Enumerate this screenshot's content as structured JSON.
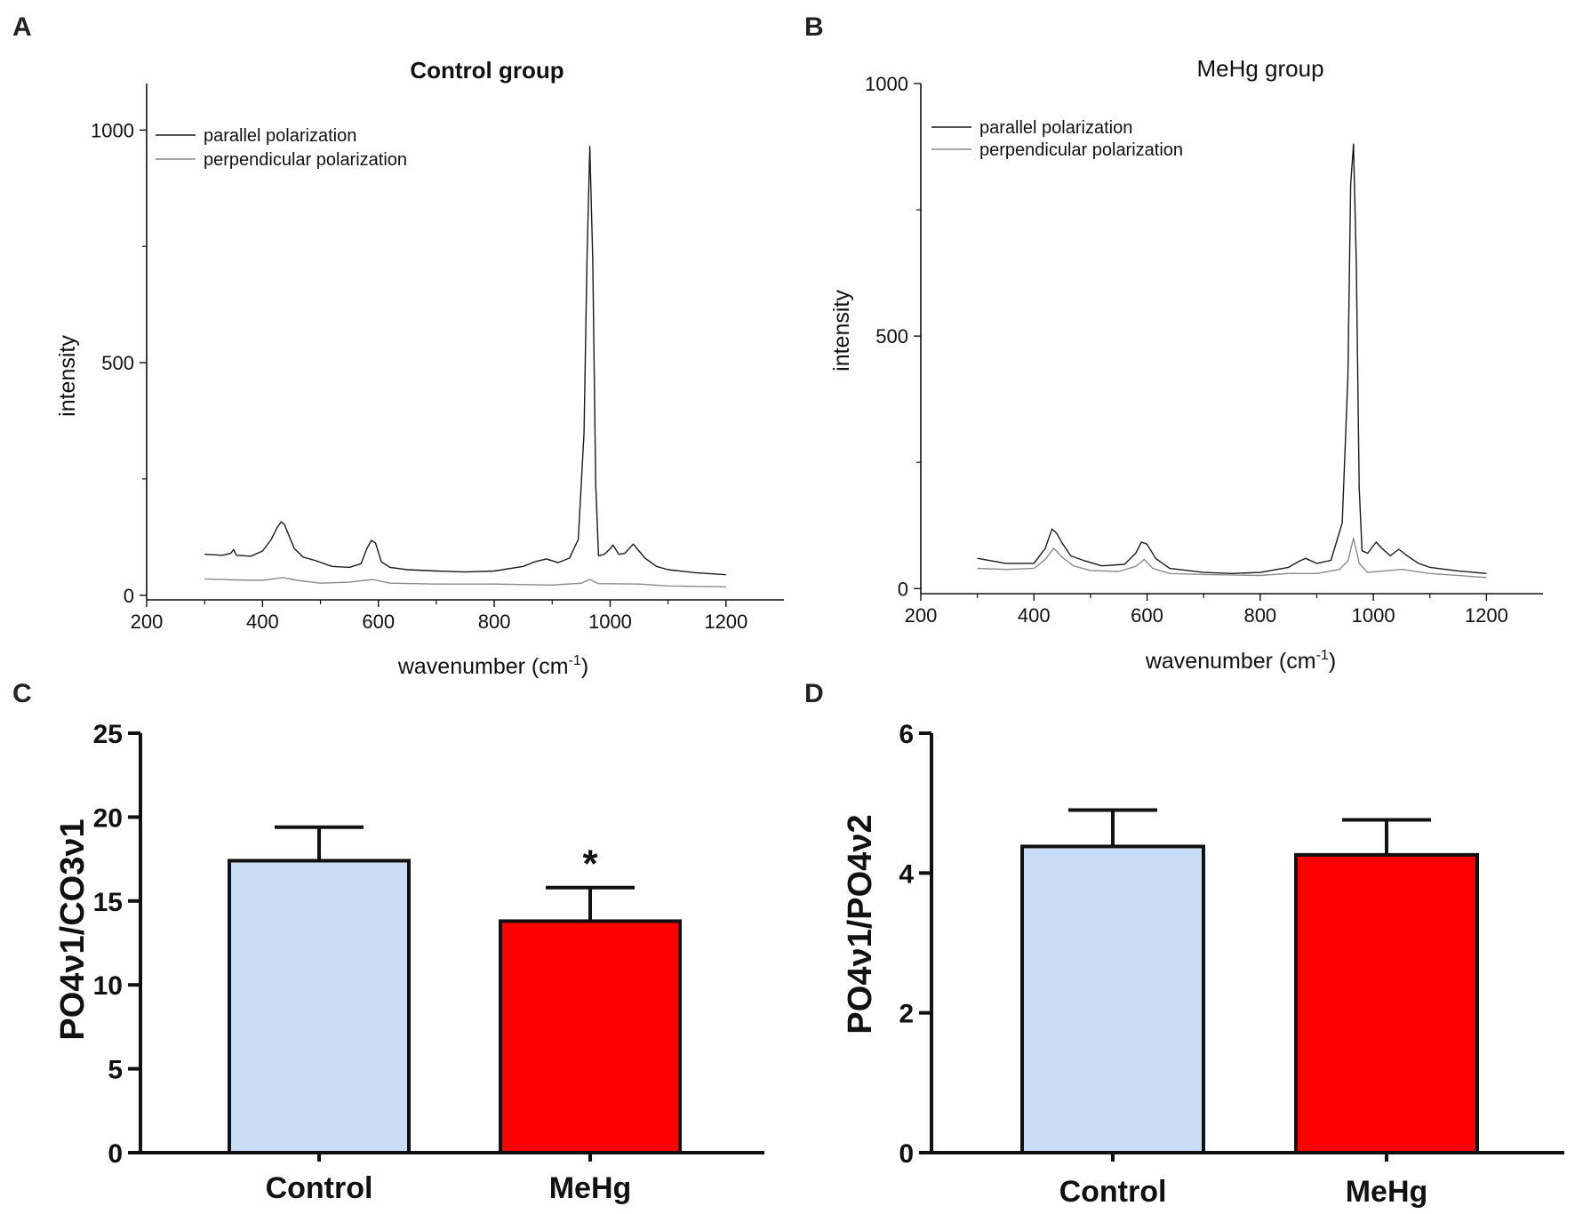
{
  "panels": {
    "A": "A",
    "B": "B",
    "C": "C",
    "D": "D"
  },
  "colors": {
    "parallel": "#1a1a1a",
    "perpendicular": "#8a8a8a",
    "control_bar": "#c9ddf6",
    "mehg_bar": "#ff0000"
  },
  "chart_data": [
    {
      "id": "A",
      "type": "line",
      "title": "Control group",
      "xlabel": "wavenumber (cm",
      "xlabel_sup": "-1",
      "xlabel_close": ")",
      "ylabel": "intensity",
      "xlim": [
        200,
        1300
      ],
      "ylim": [
        -10,
        1100
      ],
      "xticks": [
        "200",
        "400",
        "600",
        "800",
        "1000",
        "1200"
      ],
      "yticks": [
        "0",
        "500",
        "1000"
      ],
      "legend_position": "top-left",
      "series": [
        {
          "name": "parallel polarization",
          "x": [
            300,
            330,
            345,
            350,
            355,
            380,
            400,
            415,
            425,
            432,
            438,
            445,
            455,
            470,
            490,
            520,
            550,
            570,
            580,
            588,
            595,
            605,
            620,
            650,
            700,
            750,
            800,
            850,
            870,
            890,
            910,
            930,
            945,
            955,
            960,
            965,
            970,
            975,
            980,
            990,
            1000,
            1005,
            1015,
            1025,
            1040,
            1048,
            1060,
            1080,
            1100,
            1150,
            1200
          ],
          "y": [
            88,
            86,
            90,
            98,
            86,
            84,
            95,
            120,
            145,
            158,
            152,
            130,
            100,
            82,
            75,
            62,
            60,
            68,
            100,
            118,
            112,
            72,
            60,
            55,
            52,
            50,
            52,
            62,
            72,
            78,
            70,
            80,
            120,
            350,
            720,
            965,
            720,
            240,
            85,
            88,
            100,
            108,
            88,
            90,
            110,
            98,
            80,
            62,
            55,
            48,
            44
          ]
        },
        {
          "name": "perpendicular polarization",
          "x": [
            300,
            350,
            400,
            435,
            460,
            500,
            550,
            590,
            620,
            700,
            800,
            900,
            950,
            965,
            980,
            1050,
            1100,
            1200
          ],
          "y": [
            35,
            33,
            32,
            38,
            32,
            26,
            28,
            34,
            26,
            24,
            24,
            22,
            26,
            34,
            25,
            24,
            20,
            18
          ]
        }
      ]
    },
    {
      "id": "B",
      "type": "line",
      "title": "MeHg group",
      "xlabel": "wavenumber (cm",
      "xlabel_sup": "-1",
      "xlabel_close": ")",
      "ylabel": "intensity",
      "xlim": [
        200,
        1300
      ],
      "ylim": [
        -10,
        1000
      ],
      "xticks": [
        "200",
        "400",
        "600",
        "800",
        "1000",
        "1200"
      ],
      "yticks": [
        "0",
        "500",
        "1000"
      ],
      "legend_position": "top-left",
      "series": [
        {
          "name": "parallel polarization",
          "x": [
            300,
            350,
            400,
            420,
            432,
            440,
            450,
            465,
            490,
            520,
            560,
            580,
            590,
            600,
            615,
            640,
            700,
            750,
            800,
            850,
            870,
            880,
            900,
            925,
            945,
            955,
            960,
            965,
            970,
            975,
            980,
            990,
            1005,
            1015,
            1030,
            1045,
            1060,
            1080,
            1100,
            1150,
            1200
          ],
          "y": [
            60,
            50,
            50,
            80,
            118,
            110,
            90,
            65,
            55,
            45,
            48,
            70,
            92,
            88,
            60,
            40,
            32,
            30,
            32,
            42,
            55,
            60,
            50,
            56,
            130,
            420,
            800,
            880,
            640,
            200,
            75,
            70,
            92,
            80,
            65,
            78,
            65,
            50,
            42,
            35,
            30
          ]
        },
        {
          "name": "perpendicular polarization",
          "x": [
            300,
            350,
            400,
            420,
            435,
            450,
            470,
            500,
            550,
            580,
            595,
            610,
            640,
            700,
            800,
            850,
            900,
            940,
            955,
            965,
            975,
            990,
            1050,
            1100,
            1200
          ],
          "y": [
            40,
            38,
            40,
            58,
            80,
            62,
            45,
            36,
            34,
            44,
            58,
            40,
            30,
            28,
            26,
            30,
            30,
            38,
            55,
            100,
            50,
            32,
            38,
            30,
            22
          ]
        }
      ]
    },
    {
      "id": "C",
      "type": "bar",
      "ylabel": "PO4ν1/CO3ν1",
      "ylim": [
        0,
        25
      ],
      "yticks": [
        "0",
        "5",
        "10",
        "15",
        "20",
        "25"
      ],
      "categories": [
        "Control",
        "MeHg"
      ],
      "values": [
        17.4,
        13.8
      ],
      "errors": [
        2.0,
        2.0
      ],
      "annotations": [
        "",
        "*"
      ]
    },
    {
      "id": "D",
      "type": "bar",
      "ylabel": "PO4ν1/PO4ν2",
      "ylim": [
        0,
        6
      ],
      "yticks": [
        "0",
        "2",
        "4",
        "6"
      ],
      "categories": [
        "Control",
        "MeHg"
      ],
      "values": [
        4.38,
        4.26
      ],
      "errors": [
        0.52,
        0.5
      ],
      "annotations": [
        "",
        ""
      ]
    }
  ]
}
